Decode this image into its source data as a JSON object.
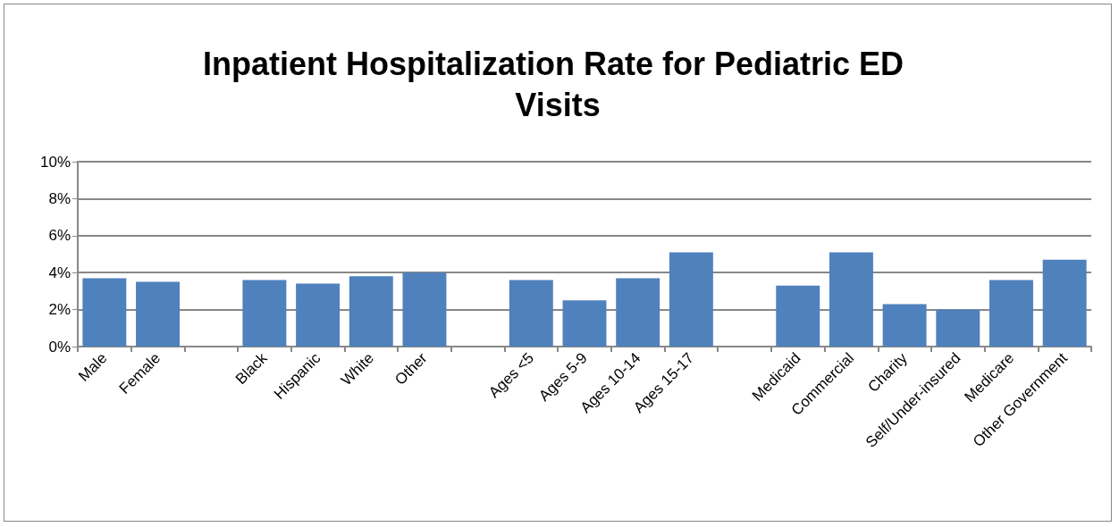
{
  "chart_data": {
    "type": "bar",
    "title": "Inpatient Hospitalization Rate for Pediatric ED Visits",
    "categories": [
      "Male",
      "Female",
      null,
      "Black",
      "Hispanic",
      "White",
      "Other",
      null,
      "Ages <5",
      "Ages 5-9",
      "Ages 10-14",
      "Ages 15-17",
      null,
      "Medicaid",
      "Commercial",
      "Charity",
      "Self/Under-insured",
      "Medicare",
      "Other Government"
    ],
    "values": [
      3.7,
      3.5,
      null,
      3.6,
      3.4,
      3.8,
      4.0,
      null,
      3.6,
      2.5,
      3.7,
      5.1,
      null,
      3.3,
      5.1,
      2.3,
      2.0,
      3.6,
      4.7
    ],
    "color": "#4f81bd",
    "ylim": [
      0,
      10
    ],
    "yticks": [
      {
        "value": 0,
        "label": "0%"
      },
      {
        "value": 2,
        "label": "2%"
      },
      {
        "value": 4,
        "label": "4%"
      },
      {
        "value": 6,
        "label": "6%"
      },
      {
        "value": 8,
        "label": "8%"
      },
      {
        "value": 10,
        "label": "10%"
      }
    ],
    "grid": "y"
  }
}
